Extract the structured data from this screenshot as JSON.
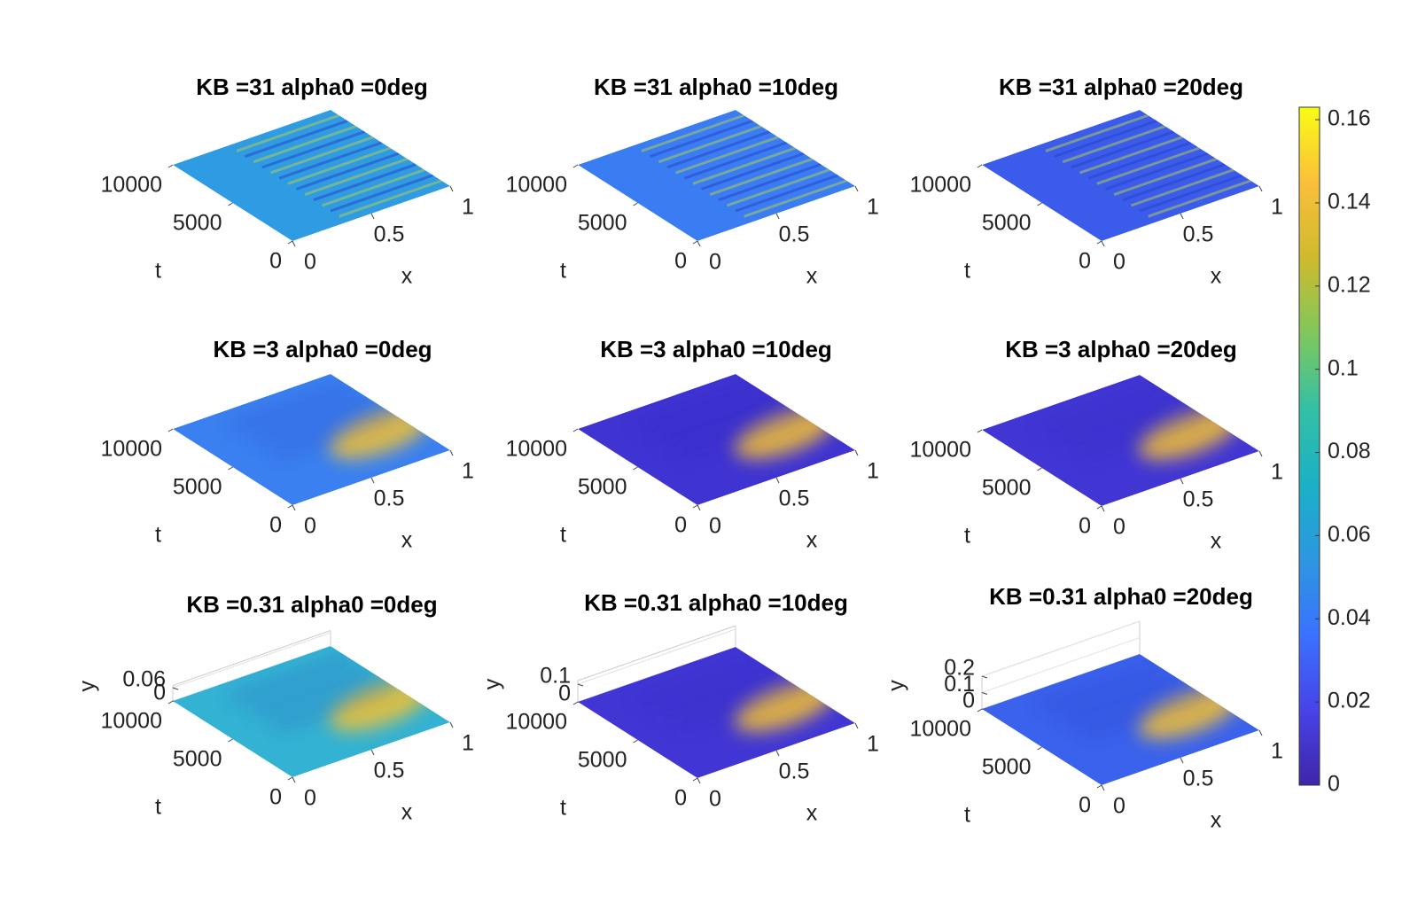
{
  "chart_data": [
    {
      "type": "surface",
      "title": "KB =31 alpha0 =0deg",
      "xlabel": "x",
      "ylabel": "t",
      "xlim": [
        0,
        1
      ],
      "ylim": [
        0,
        10000
      ],
      "xticks": [
        0,
        0.5,
        1
      ],
      "yticks": [
        0,
        5000,
        10000
      ],
      "color": "#2f9be2",
      "stripes": true
    },
    {
      "type": "surface",
      "title": "KB =31 alpha0 =10deg",
      "xlabel": "x",
      "ylabel": "t",
      "xlim": [
        0,
        1
      ],
      "ylim": [
        0,
        10000
      ],
      "xticks": [
        0,
        0.5,
        1
      ],
      "yticks": [
        0,
        5000,
        10000
      ],
      "color": "#3a7df2",
      "stripes": true
    },
    {
      "type": "surface",
      "title": "KB =31 alpha0 =20deg",
      "xlabel": "x",
      "ylabel": "t",
      "xlim": [
        0,
        1
      ],
      "ylim": [
        0,
        10000
      ],
      "xticks": [
        0,
        0.5,
        1
      ],
      "yticks": [
        0,
        5000,
        10000
      ],
      "color": "#3b5ceb",
      "stripes": true
    },
    {
      "type": "surface",
      "title": "KB =3 alpha0 =0deg",
      "xlabel": "x",
      "ylabel": "t",
      "xlim": [
        0,
        1
      ],
      "ylim": [
        0,
        10000
      ],
      "xticks": [
        0,
        0.5,
        1
      ],
      "yticks": [
        0,
        5000,
        10000
      ],
      "color": "#3a80f0",
      "stripes": false
    },
    {
      "type": "surface",
      "title": "KB =3 alpha0 =10deg",
      "xlabel": "x",
      "ylabel": "t",
      "xlim": [
        0,
        1
      ],
      "ylim": [
        0,
        10000
      ],
      "xticks": [
        0,
        0.5,
        1
      ],
      "yticks": [
        0,
        5000,
        10000
      ],
      "color": "#3f33d2",
      "stripes": false
    },
    {
      "type": "surface",
      "title": "KB =3 alpha0 =20deg",
      "xlabel": "x",
      "ylabel": "t",
      "xlim": [
        0,
        1
      ],
      "ylim": [
        0,
        10000
      ],
      "xticks": [
        0,
        0.5,
        1
      ],
      "yticks": [
        0,
        5000,
        10000
      ],
      "color": "#4136d4",
      "stripes": false
    },
    {
      "type": "surface",
      "title": "KB =0.31 alpha0 =0deg",
      "xlabel": "x",
      "ylabel": "t",
      "zlabel": "y",
      "xlim": [
        0,
        1
      ],
      "ylim": [
        0,
        10000
      ],
      "zlim": [
        0,
        0.07
      ],
      "xticks": [
        0,
        0.5,
        1
      ],
      "yticks": [
        0,
        5000,
        10000
      ],
      "zticks": [
        0,
        0.06
      ],
      "color": "#33b2d3",
      "stripes": false
    },
    {
      "type": "surface",
      "title": "KB =0.31 alpha0 =10deg",
      "xlabel": "x",
      "ylabel": "t",
      "zlabel": "y",
      "xlim": [
        0,
        1
      ],
      "ylim": [
        0,
        10000
      ],
      "zlim": [
        0,
        0.12
      ],
      "xticks": [
        0,
        0.5,
        1
      ],
      "yticks": [
        0,
        5000,
        10000
      ],
      "zticks": [
        0,
        0.1
      ],
      "color": "#4136d4",
      "stripes": false
    },
    {
      "type": "surface",
      "title": "KB =0.31 alpha0 =20deg",
      "xlabel": "x",
      "ylabel": "t",
      "zlabel": "y",
      "xlim": [
        0,
        1
      ],
      "ylim": [
        0,
        10000
      ],
      "zlim": [
        0,
        0.2
      ],
      "xticks": [
        0,
        0.5,
        1
      ],
      "yticks": [
        0,
        5000,
        10000
      ],
      "zticks": [
        0,
        0.1,
        0.2
      ],
      "color": "#3a62ec",
      "stripes": false
    }
  ],
  "colorbar": {
    "clim": [
      0,
      0.163
    ],
    "ticks": [
      0,
      0.02,
      0.04,
      0.06,
      0.08,
      0.1,
      0.12,
      0.14,
      0.16
    ],
    "colormap": [
      "#3e26a8",
      "#4743e8",
      "#3a72fe",
      "#2d97e0",
      "#1bb0c6",
      "#34c0a5",
      "#80c75b",
      "#cfba2e",
      "#fbbf3c",
      "#f9fb15"
    ]
  }
}
